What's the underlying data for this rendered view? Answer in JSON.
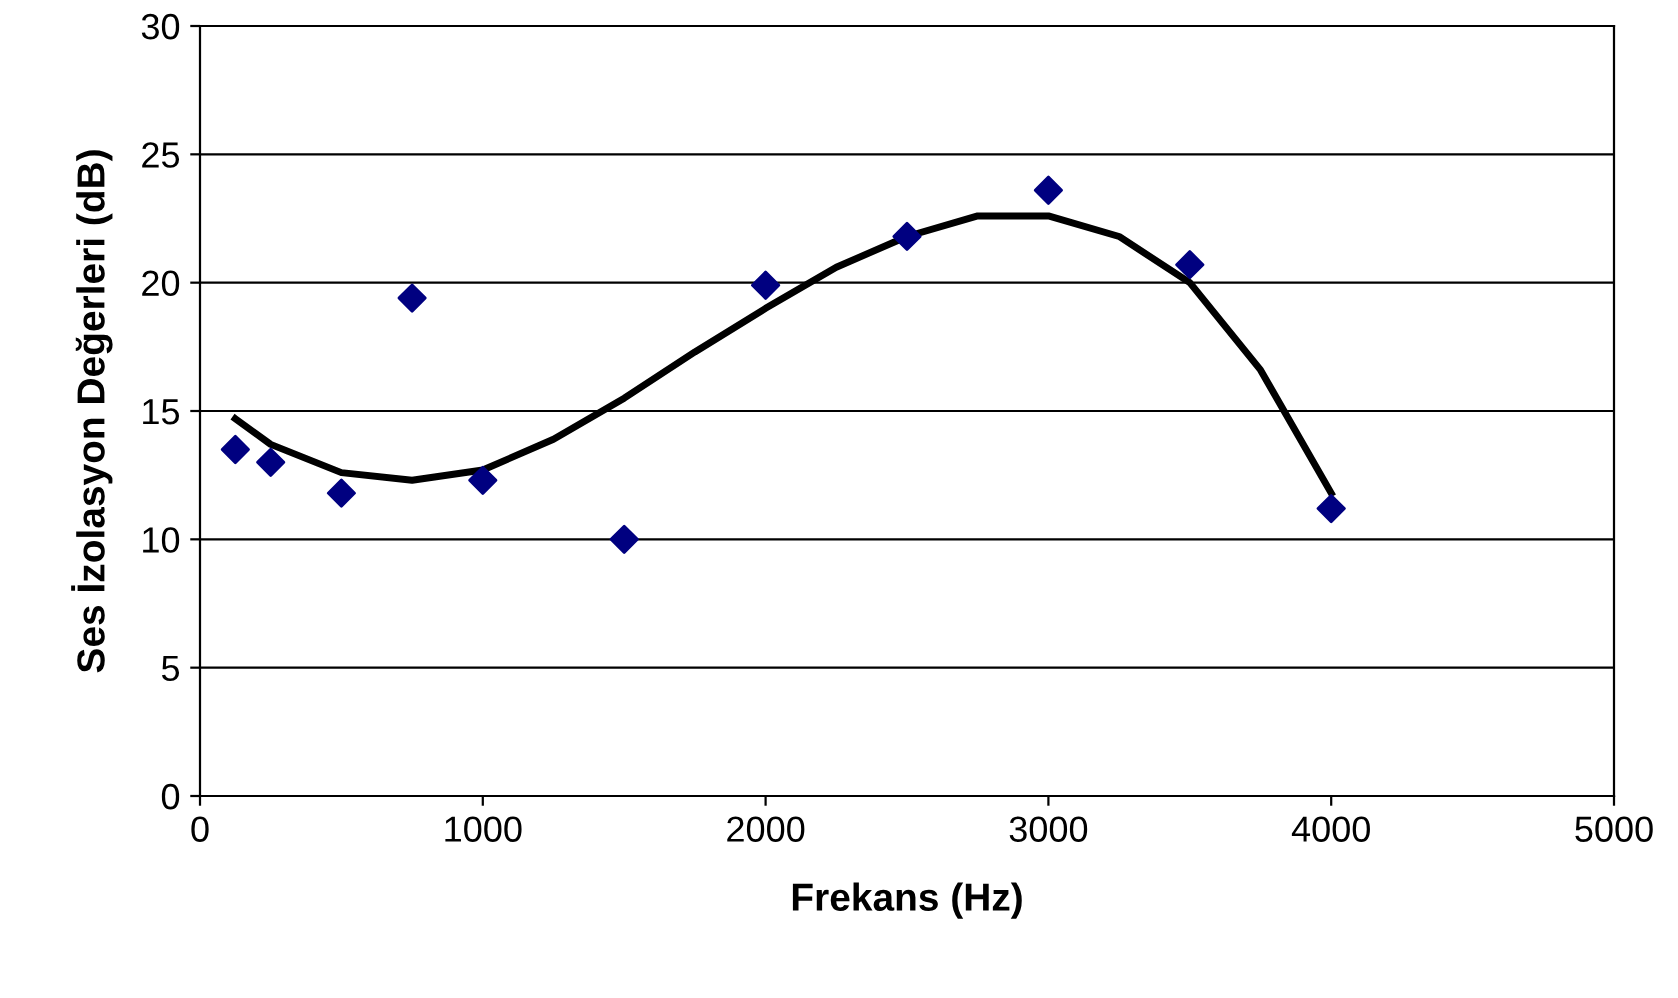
{
  "chart_data": {
    "type": "scatter",
    "xlabel": "Frekans (Hz)",
    "ylabel": "Ses İzolasyon Değerleri (dB)",
    "xlim": [
      0,
      5000
    ],
    "xticks": [
      0,
      1000,
      2000,
      3000,
      4000,
      5000
    ],
    "ylim": [
      0,
      30
    ],
    "yticks": [
      0,
      5,
      10,
      15,
      20,
      25,
      30
    ],
    "grid": "y",
    "marker": "diamond",
    "series": [
      {
        "color": "#000080",
        "x": [
          125,
          250,
          500,
          750,
          1000,
          1500,
          2000,
          2500,
          3000,
          3500,
          4000
        ],
        "values": [
          13.5,
          13.0,
          11.8,
          19.4,
          12.3,
          10.0,
          19.9,
          21.8,
          23.6,
          20.7,
          11.2
        ]
      },
      {
        "type": "line",
        "color": "#000000",
        "marker": "none",
        "x": [
          125,
          250,
          500,
          750,
          1000,
          1250,
          1500,
          1750,
          2000,
          2250,
          2500,
          2750,
          3000,
          3250,
          3500,
          3750,
          4000
        ],
        "values": [
          14.7,
          13.7,
          12.6,
          12.3,
          12.7,
          13.9,
          15.5,
          17.3,
          19.0,
          20.6,
          21.8,
          22.6,
          22.6,
          21.8,
          20.0,
          16.6,
          11.8
        ]
      }
    ]
  }
}
